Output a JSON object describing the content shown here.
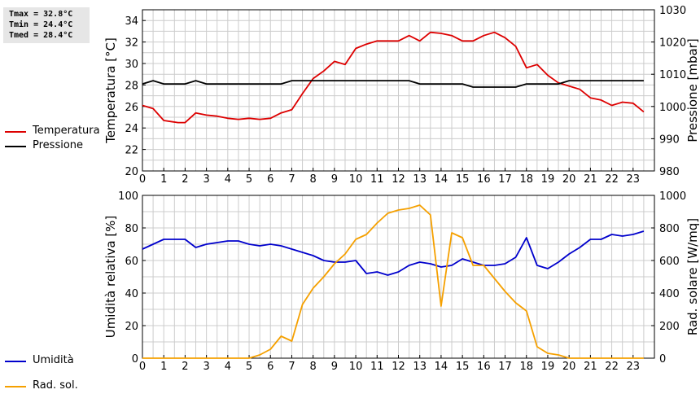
{
  "stats": {
    "tmax": "Tmax = 32.8°C",
    "tmin": "Tmin = 24.4°C",
    "tmed": "Tmed = 28.4°C"
  },
  "colors": {
    "temperature": "#dd0000",
    "pressure": "#000000",
    "humidity": "#0000cc",
    "radiation": "#f5a000",
    "grid": "#cccccc"
  },
  "chart_data": [
    {
      "type": "line",
      "xlim": [
        0,
        24
      ],
      "xticks": [
        "0",
        "1",
        "2",
        "3",
        "4",
        "5",
        "6",
        "7",
        "8",
        "9",
        "10",
        "11",
        "12",
        "13",
        "14",
        "15",
        "16",
        "17",
        "18",
        "19",
        "20",
        "21",
        "22",
        "23"
      ],
      "ylabel": "Temperatura [°C]",
      "ylim": [
        20,
        35
      ],
      "yticks": [
        "20",
        "22",
        "24",
        "26",
        "28",
        "30",
        "32",
        "34"
      ],
      "y2label": "Pressione [mbar]",
      "y2lim": [
        980,
        1030
      ],
      "y2ticks": [
        "980",
        "990",
        "1000",
        "1010",
        "1020",
        "1030"
      ],
      "grid": true,
      "legend": "left",
      "series": [
        {
          "name": "Temperatura",
          "axis": "left",
          "x": [
            0,
            0.5,
            1,
            1.33,
            1.67,
            2,
            2.5,
            3,
            3.5,
            4,
            4.5,
            5,
            5.5,
            6,
            6.5,
            7,
            7.5,
            8,
            8.5,
            9,
            9.5,
            10,
            10.5,
            11,
            11.5,
            12,
            12.5,
            13,
            13.5,
            14,
            14.5,
            15,
            15.5,
            16,
            16.5,
            17,
            17.5,
            18,
            18.5,
            19,
            19.5,
            20,
            20.5,
            21,
            21.5,
            22,
            22.5,
            23,
            23.5
          ],
          "y": [
            26.1,
            25.8,
            24.7,
            24.6,
            24.5,
            24.5,
            25.4,
            25.2,
            25.1,
            24.9,
            24.8,
            24.9,
            24.8,
            24.9,
            25.4,
            25.7,
            27.2,
            28.6,
            29.3,
            30.2,
            29.9,
            31.4,
            31.8,
            32.1,
            32.1,
            32.1,
            32.6,
            32.1,
            32.9,
            32.8,
            32.6,
            32.1,
            32.1,
            32.6,
            32.9,
            32.4,
            31.6,
            29.6,
            29.9,
            28.9,
            28.2,
            27.9,
            27.6,
            26.8,
            26.6,
            26.1,
            26.4,
            26.3,
            25.5
          ]
        },
        {
          "name": "Pressione",
          "axis": "right",
          "x": [
            0,
            0.5,
            1,
            1.5,
            2,
            2.5,
            3,
            3.5,
            4,
            4.5,
            5,
            5.5,
            6,
            6.5,
            7,
            7.5,
            8,
            8.5,
            9,
            9.5,
            10,
            10.5,
            11,
            11.5,
            12,
            12.5,
            13,
            13.5,
            14,
            14.5,
            15,
            15.5,
            16,
            16.5,
            17,
            17.5,
            18,
            18.5,
            19,
            19.5,
            20,
            20.5,
            21,
            21.5,
            22,
            22.5,
            23,
            23.5
          ],
          "y": [
            1007,
            1008,
            1007,
            1007,
            1007,
            1008,
            1007,
            1007,
            1007,
            1007,
            1007,
            1007,
            1007,
            1007,
            1008,
            1008,
            1008,
            1008,
            1008,
            1008,
            1008,
            1008,
            1008,
            1008,
            1008,
            1008,
            1007,
            1007,
            1007,
            1007,
            1007,
            1006,
            1006,
            1006,
            1006,
            1006,
            1007,
            1007,
            1007,
            1007,
            1008,
            1008,
            1008,
            1008,
            1008,
            1008,
            1008,
            1008
          ]
        }
      ]
    },
    {
      "type": "line",
      "xlim": [
        0,
        24
      ],
      "xticks": [
        "0",
        "1",
        "2",
        "3",
        "4",
        "5",
        "6",
        "7",
        "8",
        "9",
        "10",
        "11",
        "12",
        "13",
        "14",
        "15",
        "16",
        "17",
        "18",
        "19",
        "20",
        "21",
        "22",
        "23"
      ],
      "ylabel": "Umidità relativa [%]",
      "ylim": [
        0,
        100
      ],
      "yticks": [
        "0",
        "20",
        "40",
        "60",
        "80",
        "100"
      ],
      "y2label": "Rad. solare [W/mq]",
      "y2lim": [
        0,
        1000
      ],
      "y2ticks": [
        "0",
        "200",
        "400",
        "600",
        "800",
        "1000"
      ],
      "grid": true,
      "legend": "left",
      "series": [
        {
          "name": "Umidità",
          "axis": "left",
          "x": [
            0,
            0.5,
            1,
            1.5,
            2,
            2.5,
            3,
            3.5,
            4,
            4.5,
            5,
            5.5,
            6,
            6.5,
            7,
            7.5,
            8,
            8.5,
            9,
            9.5,
            10,
            10.5,
            11,
            11.5,
            12,
            12.5,
            13,
            13.5,
            14,
            14.5,
            15,
            15.5,
            16,
            16.5,
            17,
            17.5,
            18,
            18.5,
            19,
            19.5,
            20,
            20.5,
            21,
            21.5,
            22,
            22.5,
            23,
            23.5
          ],
          "y": [
            67,
            70,
            73,
            73,
            73,
            68,
            70,
            71,
            72,
            72,
            70,
            69,
            70,
            69,
            67,
            65,
            63,
            60,
            59,
            59,
            60,
            52,
            53,
            51,
            53,
            57,
            59,
            58,
            56,
            57,
            61,
            59,
            57,
            57,
            58,
            62,
            74,
            57,
            55,
            59,
            64,
            68,
            73,
            73,
            76,
            75,
            76,
            78
          ]
        },
        {
          "name": "Rad. sol.",
          "axis": "right",
          "x": [
            0,
            0.5,
            1,
            1.5,
            2,
            2.5,
            3,
            3.5,
            4,
            4.5,
            5,
            5.5,
            6,
            6.5,
            7,
            7.5,
            8,
            8.5,
            9,
            9.5,
            10,
            10.5,
            11,
            11.5,
            12,
            12.5,
            13,
            13.5,
            14,
            14.5,
            15,
            15.5,
            16,
            16.5,
            17,
            17.5,
            18,
            18.5,
            19,
            19.5,
            20,
            20.5,
            21,
            21.5,
            22,
            22.5,
            23,
            23.5
          ],
          "y": [
            0,
            0,
            0,
            0,
            0,
            0,
            0,
            0,
            0,
            0,
            0,
            20,
            55,
            135,
            105,
            330,
            430,
            500,
            580,
            640,
            730,
            760,
            830,
            890,
            910,
            920,
            940,
            880,
            320,
            770,
            740,
            570,
            570,
            490,
            410,
            340,
            290,
            70,
            30,
            20,
            0,
            0,
            0,
            0,
            0,
            0,
            0,
            0
          ]
        }
      ]
    }
  ]
}
